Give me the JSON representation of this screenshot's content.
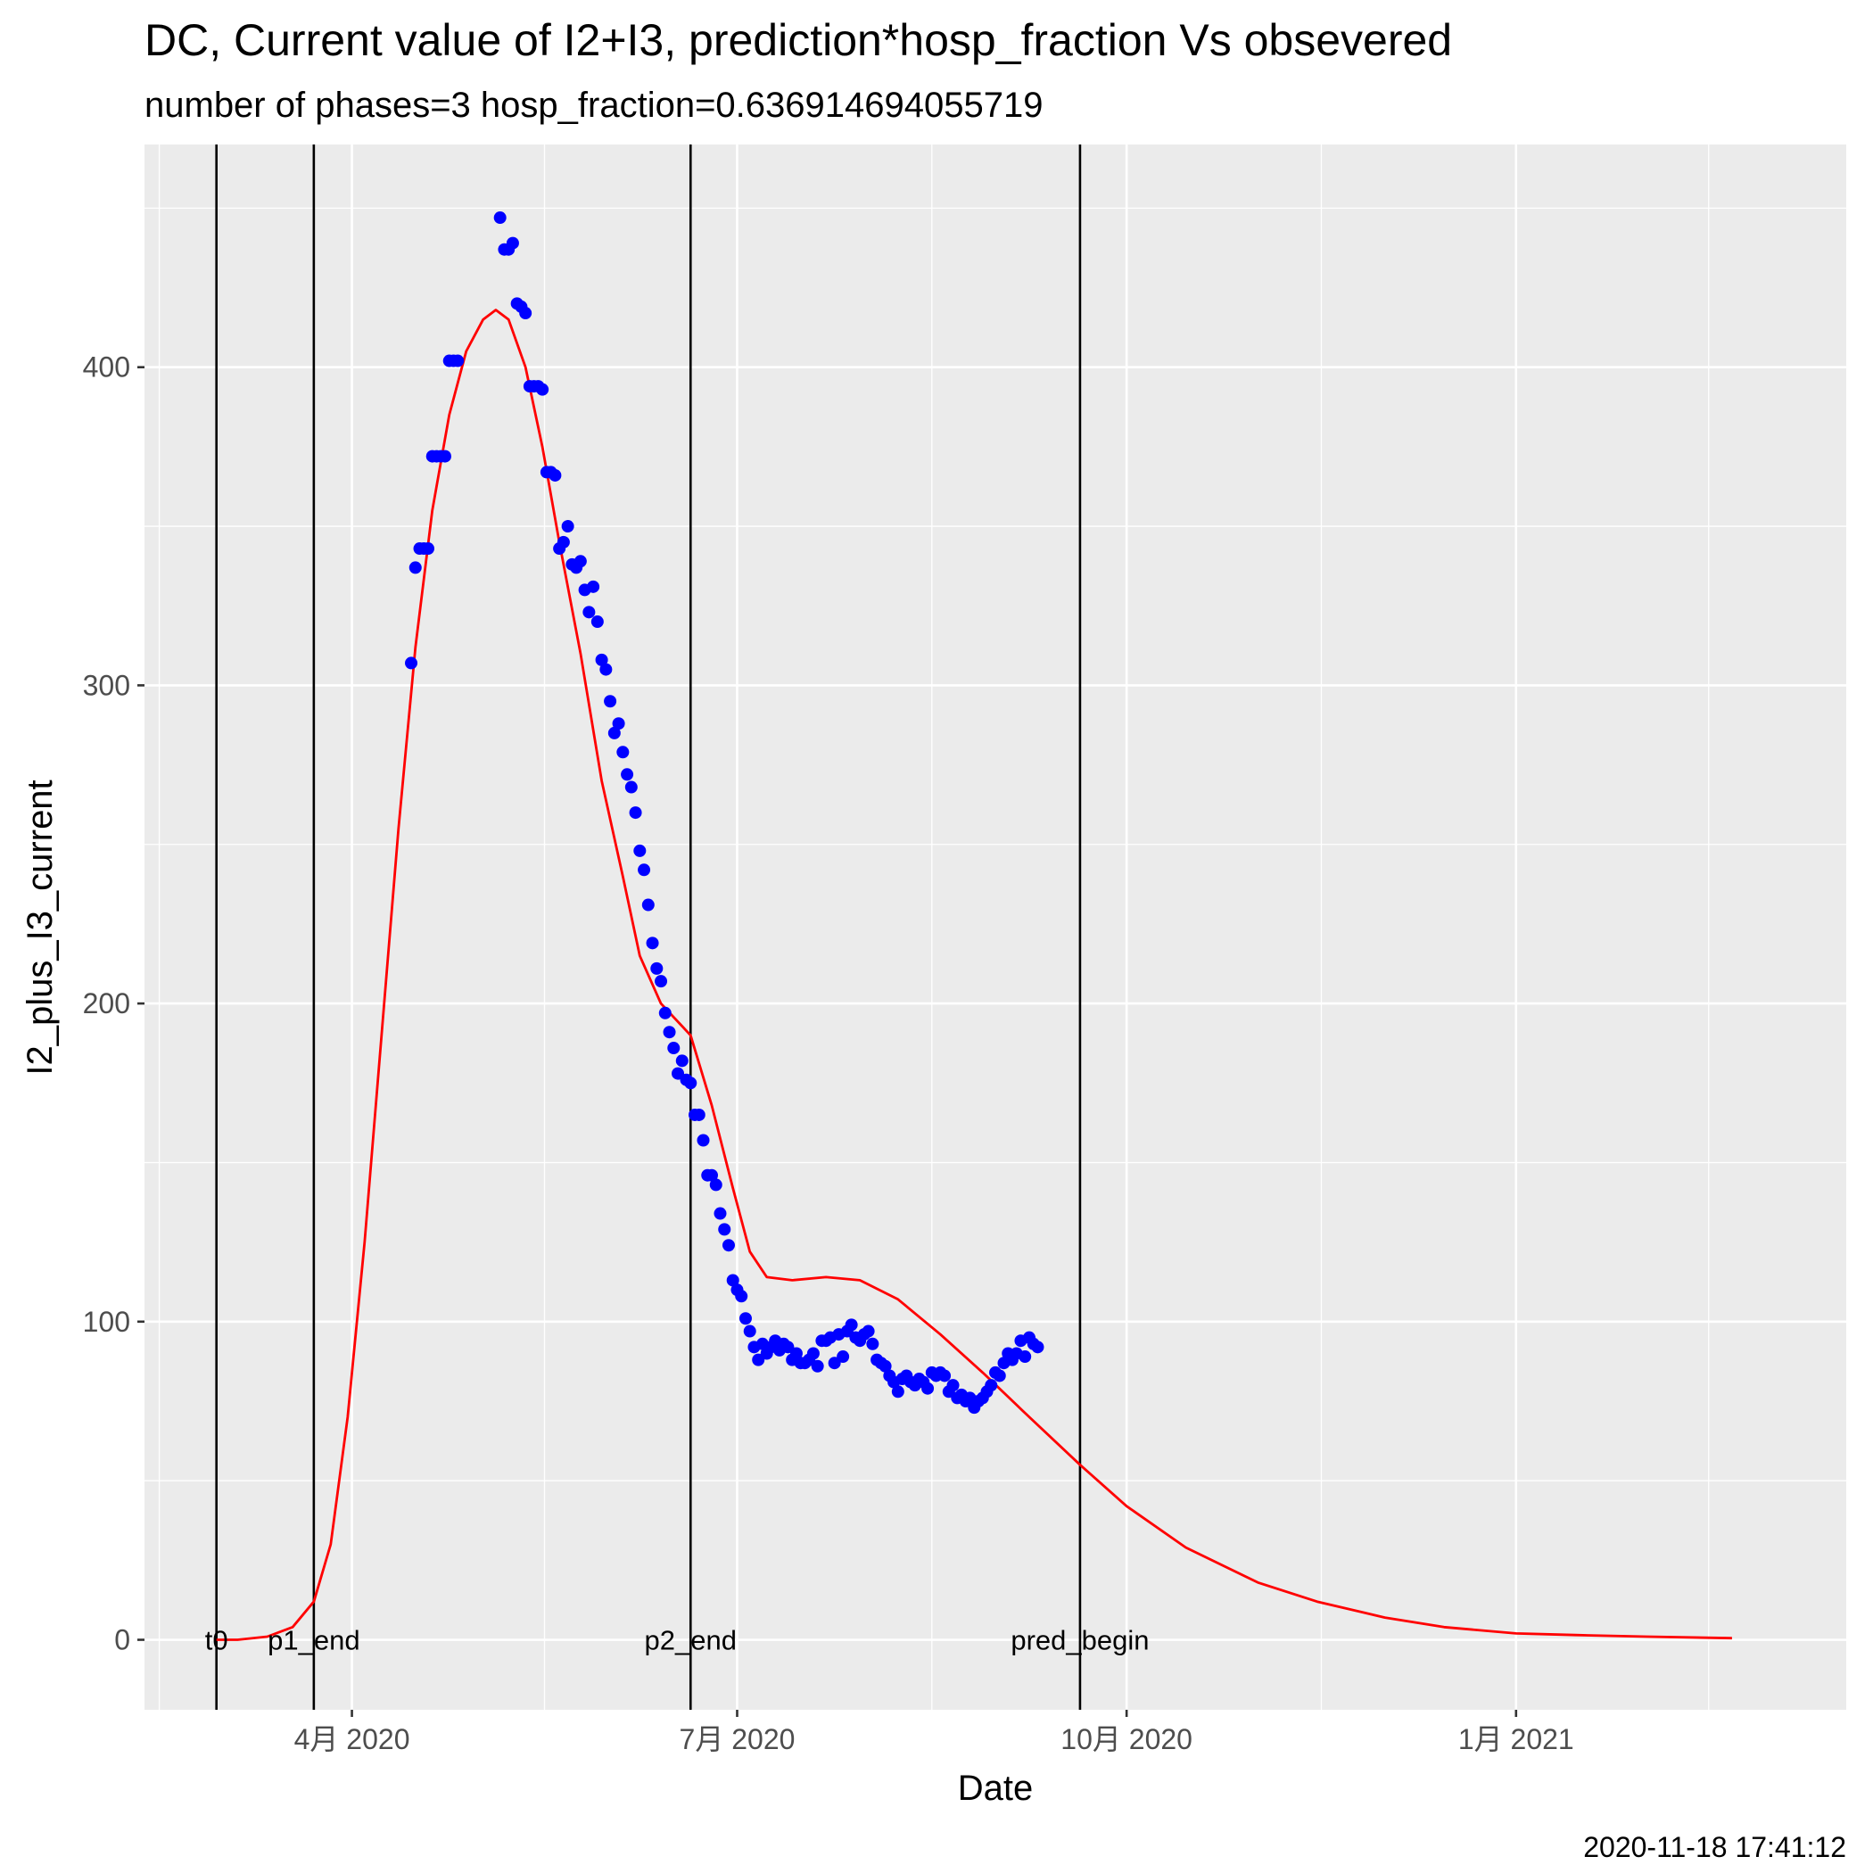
{
  "chart_data": {
    "type": "line",
    "title": "DC, Current value of I2+I3, prediction*hosp_fraction Vs obsevered",
    "subtitle": "number of phases=3   hosp_fraction=0.636914694055719",
    "xlabel": "Date",
    "ylabel": "I2_plus_I3_current",
    "caption": "2020-11-18 17:41:12",
    "grid": true,
    "xlim": [
      "2020-02-12",
      "2021-03-20"
    ],
    "ylim": [
      -22,
      470
    ],
    "x_ticks": [
      {
        "date": "2020-04-01",
        "label": "4月 2020"
      },
      {
        "date": "2020-07-01",
        "label": "7月 2020"
      },
      {
        "date": "2020-10-01",
        "label": "10月 2020"
      },
      {
        "date": "2021-01-01",
        "label": "1月 2021"
      }
    ],
    "y_ticks": [
      0,
      100,
      200,
      300,
      400
    ],
    "vertical_lines": [
      {
        "date": "2020-02-29",
        "label": "t0"
      },
      {
        "date": "2020-03-23",
        "label": "p1_end"
      },
      {
        "date": "2020-06-20",
        "label": "p2_end"
      },
      {
        "date": "2020-09-20",
        "label": "pred_begin"
      }
    ],
    "series": [
      {
        "style": "line",
        "color": "#ff0000",
        "points": [
          [
            "2020-02-29",
            0
          ],
          [
            "2020-03-05",
            0
          ],
          [
            "2020-03-12",
            1
          ],
          [
            "2020-03-18",
            4
          ],
          [
            "2020-03-23",
            12
          ],
          [
            "2020-03-27",
            30
          ],
          [
            "2020-03-31",
            70
          ],
          [
            "2020-04-04",
            125
          ],
          [
            "2020-04-08",
            190
          ],
          [
            "2020-04-12",
            255
          ],
          [
            "2020-04-16",
            312
          ],
          [
            "2020-04-20",
            355
          ],
          [
            "2020-04-24",
            385
          ],
          [
            "2020-04-28",
            405
          ],
          [
            "2020-05-02",
            415
          ],
          [
            "2020-05-05",
            418
          ],
          [
            "2020-05-08",
            415
          ],
          [
            "2020-05-12",
            400
          ],
          [
            "2020-05-16",
            375
          ],
          [
            "2020-05-20",
            345
          ],
          [
            "2020-05-25",
            310
          ],
          [
            "2020-05-30",
            270
          ],
          [
            "2020-06-04",
            240
          ],
          [
            "2020-06-08",
            215
          ],
          [
            "2020-06-13",
            200
          ],
          [
            "2020-06-20",
            190
          ],
          [
            "2020-06-25",
            168
          ],
          [
            "2020-06-30",
            142
          ],
          [
            "2020-07-04",
            122
          ],
          [
            "2020-07-08",
            114
          ],
          [
            "2020-07-14",
            113
          ],
          [
            "2020-07-22",
            114
          ],
          [
            "2020-07-30",
            113
          ],
          [
            "2020-08-08",
            107
          ],
          [
            "2020-08-18",
            96
          ],
          [
            "2020-08-28",
            84
          ],
          [
            "2020-09-08",
            70
          ],
          [
            "2020-09-20",
            55
          ],
          [
            "2020-10-01",
            42
          ],
          [
            "2020-10-15",
            29
          ],
          [
            "2020-11-01",
            18
          ],
          [
            "2020-11-15",
            12
          ],
          [
            "2020-12-01",
            7
          ],
          [
            "2020-12-15",
            4
          ],
          [
            "2021-01-01",
            2
          ],
          [
            "2021-01-15",
            1.5
          ],
          [
            "2021-02-01",
            1
          ],
          [
            "2021-02-21",
            0.5
          ]
        ]
      },
      {
        "style": "points",
        "color": "#0000ff",
        "points": [
          [
            "2020-04-15",
            307
          ],
          [
            "2020-04-16",
            337
          ],
          [
            "2020-04-17",
            343
          ],
          [
            "2020-04-18",
            343
          ],
          [
            "2020-04-19",
            343
          ],
          [
            "2020-04-20",
            372
          ],
          [
            "2020-04-21",
            372
          ],
          [
            "2020-04-22",
            372
          ],
          [
            "2020-04-23",
            372
          ],
          [
            "2020-04-24",
            402
          ],
          [
            "2020-04-25",
            402
          ],
          [
            "2020-04-26",
            402
          ],
          [
            "2020-05-06",
            447
          ],
          [
            "2020-05-07",
            437
          ],
          [
            "2020-05-08",
            437
          ],
          [
            "2020-05-09",
            439
          ],
          [
            "2020-05-10",
            420
          ],
          [
            "2020-05-11",
            419
          ],
          [
            "2020-05-12",
            417
          ],
          [
            "2020-05-13",
            394
          ],
          [
            "2020-05-14",
            394
          ],
          [
            "2020-05-15",
            394
          ],
          [
            "2020-05-16",
            393
          ],
          [
            "2020-05-17",
            367
          ],
          [
            "2020-05-18",
            367
          ],
          [
            "2020-05-19",
            366
          ],
          [
            "2020-05-20",
            343
          ],
          [
            "2020-05-21",
            345
          ],
          [
            "2020-05-22",
            350
          ],
          [
            "2020-05-23",
            338
          ],
          [
            "2020-05-24",
            337
          ],
          [
            "2020-05-25",
            339
          ],
          [
            "2020-05-26",
            330
          ],
          [
            "2020-05-27",
            323
          ],
          [
            "2020-05-28",
            331
          ],
          [
            "2020-05-29",
            320
          ],
          [
            "2020-05-30",
            308
          ],
          [
            "2020-05-31",
            305
          ],
          [
            "2020-06-01",
            295
          ],
          [
            "2020-06-02",
            285
          ],
          [
            "2020-06-03",
            288
          ],
          [
            "2020-06-04",
            279
          ],
          [
            "2020-06-05",
            272
          ],
          [
            "2020-06-06",
            268
          ],
          [
            "2020-06-07",
            260
          ],
          [
            "2020-06-08",
            248
          ],
          [
            "2020-06-09",
            242
          ],
          [
            "2020-06-10",
            231
          ],
          [
            "2020-06-11",
            219
          ],
          [
            "2020-06-12",
            211
          ],
          [
            "2020-06-13",
            207
          ],
          [
            "2020-06-14",
            197
          ],
          [
            "2020-06-15",
            191
          ],
          [
            "2020-06-16",
            186
          ],
          [
            "2020-06-17",
            178
          ],
          [
            "2020-06-18",
            182
          ],
          [
            "2020-06-19",
            176
          ],
          [
            "2020-06-20",
            175
          ],
          [
            "2020-06-21",
            165
          ],
          [
            "2020-06-22",
            165
          ],
          [
            "2020-06-23",
            157
          ],
          [
            "2020-06-24",
            146
          ],
          [
            "2020-06-25",
            146
          ],
          [
            "2020-06-26",
            143
          ],
          [
            "2020-06-27",
            134
          ],
          [
            "2020-06-28",
            129
          ],
          [
            "2020-06-29",
            124
          ],
          [
            "2020-06-30",
            113
          ],
          [
            "2020-07-01",
            110
          ],
          [
            "2020-07-02",
            108
          ],
          [
            "2020-07-03",
            101
          ],
          [
            "2020-07-04",
            97
          ],
          [
            "2020-07-05",
            92
          ],
          [
            "2020-07-06",
            88
          ],
          [
            "2020-07-07",
            93
          ],
          [
            "2020-07-08",
            90
          ],
          [
            "2020-07-09",
            92
          ],
          [
            "2020-07-10",
            94
          ],
          [
            "2020-07-11",
            91
          ],
          [
            "2020-07-12",
            93
          ],
          [
            "2020-07-13",
            92
          ],
          [
            "2020-07-14",
            88
          ],
          [
            "2020-07-15",
            90
          ],
          [
            "2020-07-16",
            87
          ],
          [
            "2020-07-17",
            87
          ],
          [
            "2020-07-18",
            88
          ],
          [
            "2020-07-19",
            90
          ],
          [
            "2020-07-20",
            86
          ],
          [
            "2020-07-21",
            94
          ],
          [
            "2020-07-22",
            94
          ],
          [
            "2020-07-23",
            95
          ],
          [
            "2020-07-24",
            87
          ],
          [
            "2020-07-25",
            96
          ],
          [
            "2020-07-26",
            89
          ],
          [
            "2020-07-27",
            97
          ],
          [
            "2020-07-28",
            99
          ],
          [
            "2020-07-29",
            95
          ],
          [
            "2020-07-30",
            94
          ],
          [
            "2020-07-31",
            96
          ],
          [
            "2020-08-01",
            97
          ],
          [
            "2020-08-02",
            93
          ],
          [
            "2020-08-03",
            88
          ],
          [
            "2020-08-04",
            87
          ],
          [
            "2020-08-05",
            86
          ],
          [
            "2020-08-06",
            83
          ],
          [
            "2020-08-07",
            81
          ],
          [
            "2020-08-08",
            78
          ],
          [
            "2020-08-09",
            82
          ],
          [
            "2020-08-10",
            83
          ],
          [
            "2020-08-11",
            81
          ],
          [
            "2020-08-12",
            80
          ],
          [
            "2020-08-13",
            82
          ],
          [
            "2020-08-14",
            81
          ],
          [
            "2020-08-15",
            79
          ],
          [
            "2020-08-16",
            84
          ],
          [
            "2020-08-17",
            83
          ],
          [
            "2020-08-18",
            84
          ],
          [
            "2020-08-19",
            83
          ],
          [
            "2020-08-20",
            78
          ],
          [
            "2020-08-21",
            80
          ],
          [
            "2020-08-22",
            76
          ],
          [
            "2020-08-23",
            77
          ],
          [
            "2020-08-24",
            75
          ],
          [
            "2020-08-25",
            76
          ],
          [
            "2020-08-26",
            73
          ],
          [
            "2020-08-27",
            75
          ],
          [
            "2020-08-28",
            76
          ],
          [
            "2020-08-29",
            78
          ],
          [
            "2020-08-30",
            80
          ],
          [
            "2020-08-31",
            84
          ],
          [
            "2020-09-01",
            83
          ],
          [
            "2020-09-02",
            87
          ],
          [
            "2020-09-03",
            90
          ],
          [
            "2020-09-04",
            88
          ],
          [
            "2020-09-05",
            90
          ],
          [
            "2020-09-06",
            94
          ],
          [
            "2020-09-07",
            89
          ],
          [
            "2020-09-08",
            95
          ],
          [
            "2020-09-09",
            93
          ],
          [
            "2020-09-10",
            92
          ]
        ]
      }
    ]
  }
}
